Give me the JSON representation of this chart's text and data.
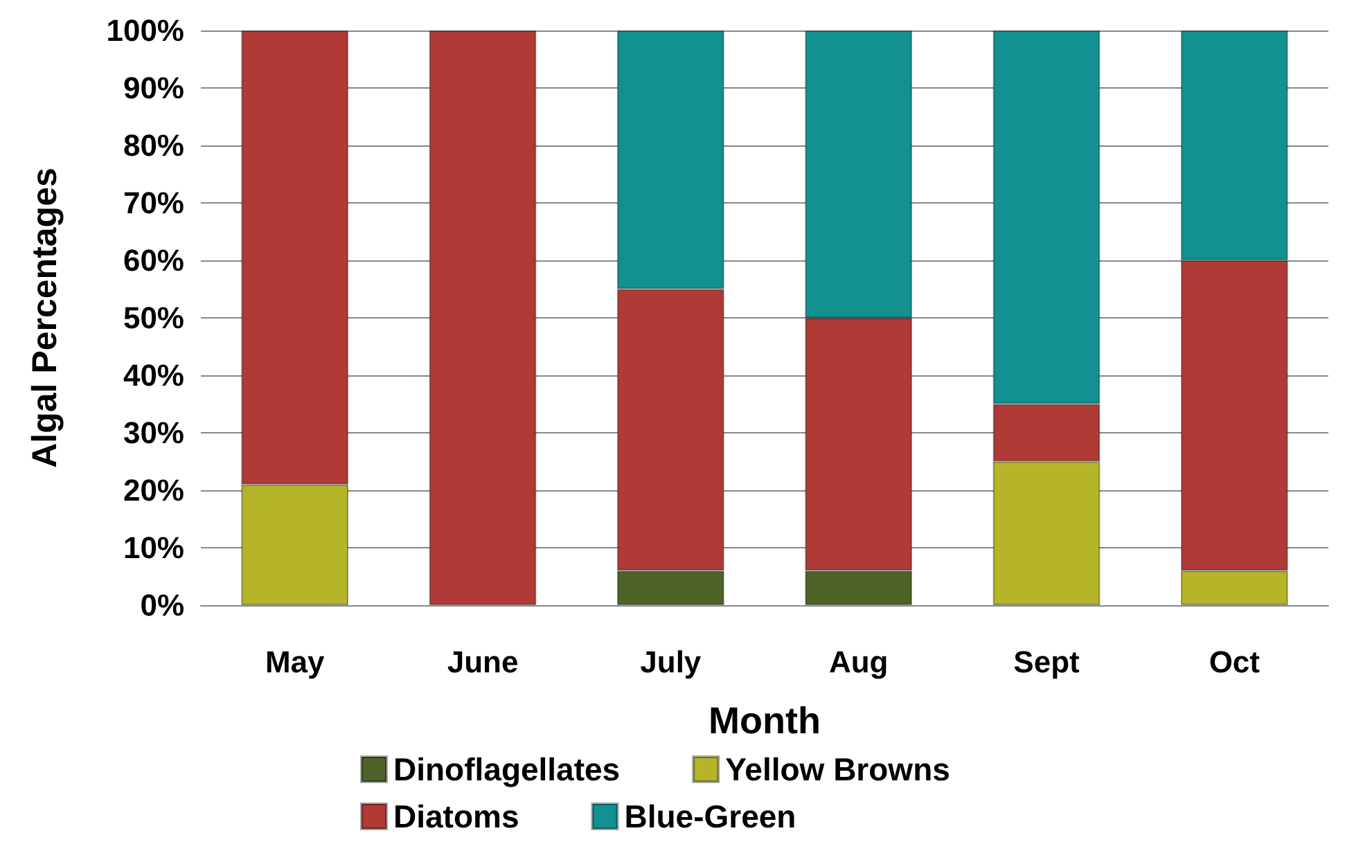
{
  "chart_data": {
    "type": "bar",
    "stacked": true,
    "xlabel": "Month",
    "ylabel": "Algal Percentages",
    "categories": [
      "May",
      "June",
      "July",
      "Aug",
      "Sept",
      "Oct"
    ],
    "series": [
      {
        "name": "Dinoflagellates",
        "color": "#4f6228",
        "values": [
          0,
          0,
          6,
          6,
          0,
          0
        ]
      },
      {
        "name": "Yellow Browns",
        "color": "#b5b52a",
        "values": [
          21,
          0,
          0,
          0,
          25,
          6
        ]
      },
      {
        "name": "Diatoms",
        "color": "#b03a36",
        "values": [
          79,
          100,
          49,
          44,
          10,
          54
        ]
      },
      {
        "name": "Blue-Green",
        "color": "#139090",
        "values": [
          0,
          0,
          45,
          50,
          65,
          40
        ]
      }
    ],
    "ylim": [
      0,
      100
    ],
    "yticks": [
      {
        "value": 0,
        "label": "0%"
      },
      {
        "value": 10,
        "label": "10%"
      },
      {
        "value": 20,
        "label": "20%"
      },
      {
        "value": 30,
        "label": "30%"
      },
      {
        "value": 40,
        "label": "40%"
      },
      {
        "value": 50,
        "label": "50%"
      },
      {
        "value": 60,
        "label": "60%"
      },
      {
        "value": 70,
        "label": "70%"
      },
      {
        "value": 80,
        "label": "80%"
      },
      {
        "value": 90,
        "label": "90%"
      },
      {
        "value": 100,
        "label": "100%"
      }
    ],
    "grid": "y",
    "legend": "bottom"
  }
}
